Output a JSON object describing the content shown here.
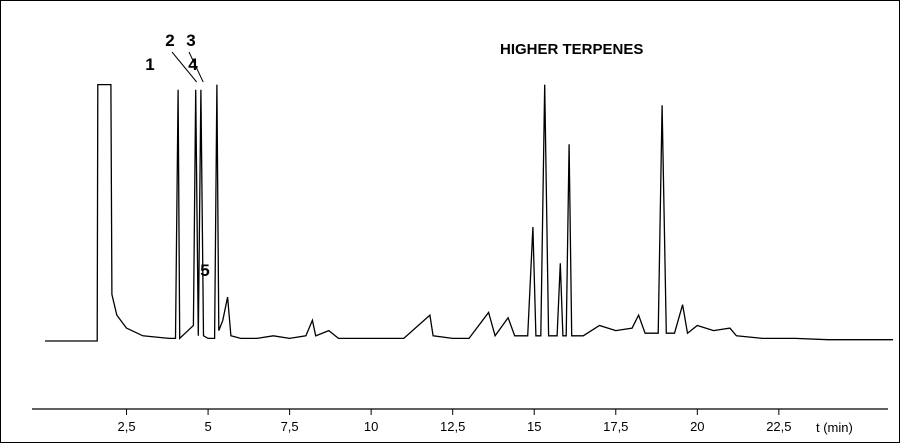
{
  "chart_data": {
    "type": "line",
    "title": "HIGHER TERPENES",
    "xlabel": "t (min)",
    "ylabel": "",
    "xlim": [
      0,
      26
    ],
    "ylim": [
      0,
      100
    ],
    "grid": false,
    "x_ticks": [
      2.5,
      5,
      7.5,
      10,
      12.5,
      15,
      17.5,
      20,
      22.5
    ],
    "x_tick_labels": [
      "2,5",
      "5",
      "7,5",
      "10",
      "12,5",
      "15",
      "17,5",
      "20",
      "22,5"
    ],
    "peak_annotations": [
      {
        "label": "1",
        "x": 4.1
      },
      {
        "label": "2",
        "x": 4.65
      },
      {
        "label": "3",
        "x": 4.85
      },
      {
        "label": "4",
        "x": 5.3
      },
      {
        "label": "5",
        "x": 5.6
      }
    ],
    "series": [
      {
        "color": "#000000",
        "points": [
          [
            0.0,
            0
          ],
          [
            1.6,
            0
          ],
          [
            1.62,
            99
          ],
          [
            2.02,
            99
          ],
          [
            2.05,
            18
          ],
          [
            2.2,
            10
          ],
          [
            2.5,
            5
          ],
          [
            3.0,
            2
          ],
          [
            3.8,
            1
          ],
          [
            4.0,
            1
          ],
          [
            4.08,
            97
          ],
          [
            4.13,
            1
          ],
          [
            4.3,
            3
          ],
          [
            4.55,
            6
          ],
          [
            4.62,
            97
          ],
          [
            4.7,
            2
          ],
          [
            4.78,
            97
          ],
          [
            4.86,
            2
          ],
          [
            5.0,
            1
          ],
          [
            5.2,
            1
          ],
          [
            5.27,
            99
          ],
          [
            5.33,
            4
          ],
          [
            5.45,
            8
          ],
          [
            5.6,
            17
          ],
          [
            5.7,
            2
          ],
          [
            6.0,
            1
          ],
          [
            6.5,
            1
          ],
          [
            7.0,
            2
          ],
          [
            7.5,
            1
          ],
          [
            8.0,
            2
          ],
          [
            8.2,
            8
          ],
          [
            8.3,
            2
          ],
          [
            8.7,
            4
          ],
          [
            9.0,
            1
          ],
          [
            10.0,
            1
          ],
          [
            11.0,
            1
          ],
          [
            11.8,
            10
          ],
          [
            11.9,
            2
          ],
          [
            12.5,
            1
          ],
          [
            13.0,
            1
          ],
          [
            13.6,
            11
          ],
          [
            13.8,
            2
          ],
          [
            14.2,
            9
          ],
          [
            14.4,
            2
          ],
          [
            14.8,
            2
          ],
          [
            14.96,
            44
          ],
          [
            15.05,
            2
          ],
          [
            15.2,
            2
          ],
          [
            15.32,
            99
          ],
          [
            15.44,
            2
          ],
          [
            15.7,
            2
          ],
          [
            15.8,
            30
          ],
          [
            15.88,
            2
          ],
          [
            15.98,
            2
          ],
          [
            16.07,
            76
          ],
          [
            16.15,
            2
          ],
          [
            16.5,
            2
          ],
          [
            17.0,
            6
          ],
          [
            17.5,
            4
          ],
          [
            18.0,
            5
          ],
          [
            18.2,
            10
          ],
          [
            18.4,
            3
          ],
          [
            18.8,
            3
          ],
          [
            18.92,
            91
          ],
          [
            19.05,
            3
          ],
          [
            19.3,
            3
          ],
          [
            19.55,
            14
          ],
          [
            19.7,
            3
          ],
          [
            20.0,
            6
          ],
          [
            20.5,
            4
          ],
          [
            21.0,
            5
          ],
          [
            21.2,
            2
          ],
          [
            22.0,
            1
          ],
          [
            23.0,
            1
          ],
          [
            24.0,
            0.5
          ],
          [
            26.0,
            0.5
          ]
        ]
      }
    ]
  }
}
